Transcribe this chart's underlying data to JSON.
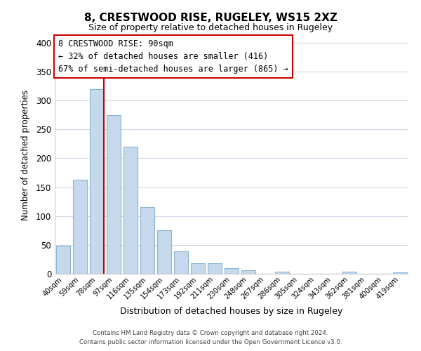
{
  "title": "8, CRESTWOOD RISE, RUGELEY, WS15 2XZ",
  "subtitle": "Size of property relative to detached houses in Rugeley",
  "xlabel": "Distribution of detached houses by size in Rugeley",
  "ylabel": "Number of detached properties",
  "bar_labels": [
    "40sqm",
    "59sqm",
    "78sqm",
    "97sqm",
    "116sqm",
    "135sqm",
    "154sqm",
    "173sqm",
    "192sqm",
    "211sqm",
    "230sqm",
    "248sqm",
    "267sqm",
    "286sqm",
    "305sqm",
    "324sqm",
    "343sqm",
    "362sqm",
    "381sqm",
    "400sqm",
    "419sqm"
  ],
  "bar_values": [
    49,
    163,
    320,
    275,
    220,
    115,
    75,
    39,
    18,
    18,
    10,
    6,
    0,
    4,
    0,
    0,
    0,
    4,
    0,
    0,
    2
  ],
  "bar_color": "#c6d9ec",
  "bar_edge_color": "#8ab4d4",
  "marker_line_index": 2,
  "annotation_title": "8 CRESTWOOD RISE: 90sqm",
  "annotation_line1": "← 32% of detached houses are smaller (416)",
  "annotation_line2": "67% of semi-detached houses are larger (865) →",
  "annotation_box_color": "#ffffff",
  "annotation_box_edge_color": "#cc0000",
  "marker_line_color": "#cc0000",
  "ylim": [
    0,
    410
  ],
  "yticks": [
    0,
    50,
    100,
    150,
    200,
    250,
    300,
    350,
    400
  ],
  "footer_line1": "Contains HM Land Registry data © Crown copyright and database right 2024.",
  "footer_line2": "Contains public sector information licensed under the Open Government Licence v3.0.",
  "background_color": "#ffffff",
  "grid_color": "#d0d8e8"
}
